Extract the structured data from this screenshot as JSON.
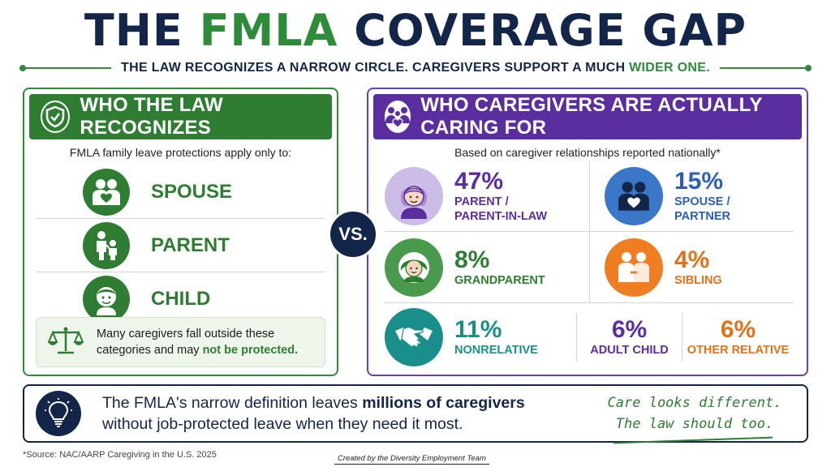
{
  "title": {
    "part1": "THE ",
    "highlight": "FMLA",
    "part2": " COVERAGE GAP"
  },
  "subtitle": {
    "main": "THE LAW RECOGNIZES A NARROW CIRCLE. CAREGIVERS SUPPORT A MUCH ",
    "highlight": "WIDER ONE."
  },
  "left": {
    "header": "WHO THE LAW RECOGNIZES",
    "header_icon": "shield-check-icon",
    "intro": "FMLA family leave protections apply only to:",
    "items": [
      {
        "label": "SPOUSE",
        "icon": "couple-heart-icon"
      },
      {
        "label": "PARENT",
        "icon": "parent-child-icon"
      },
      {
        "label": "CHILD",
        "icon": "child-icon"
      }
    ],
    "note": {
      "text": "Many caregivers fall outside these categories and may ",
      "bold": "not be protected.",
      "icon": "scales-icon"
    }
  },
  "vs": "VS.",
  "right": {
    "header": "WHO CAREGIVERS ARE ACTUALLY CARING FOR",
    "header_icon": "family-heart-icon",
    "intro": "Based on caregiver relationships reported nationally*",
    "stats": [
      {
        "pct": "47%",
        "line1": "PARENT /",
        "line2": "PARENT-IN-LAW",
        "icon": "elder-woman-icon",
        "color": "#5b2ea0"
      },
      {
        "pct": "15%",
        "line1": "SPOUSE /",
        "line2": "PARTNER",
        "icon": "couple-heart-icon",
        "color": "#2d5fb8"
      },
      {
        "pct": "8%",
        "line1": "GRANDPARENT",
        "icon": "grandparent-icon",
        "color": "#2e7d32"
      },
      {
        "pct": "4%",
        "line1": "SIBLING",
        "icon": "siblings-icon",
        "color": "#e0721c"
      },
      {
        "pct": "11%",
        "line1": "NONRELATIVE",
        "icon": "handshake-icon",
        "color": "#1a8e8a"
      },
      {
        "pct": "6%",
        "line1": "ADULT CHILD",
        "color": "#5b2ea0"
      },
      {
        "pct": "6%",
        "line1": "OTHER RELATIVE",
        "color": "#e0721c"
      }
    ]
  },
  "banner": {
    "text1": "The FMLA's narrow definition leaves ",
    "bold": "millions of caregivers",
    "text2": "without job-protected leave when they need it most.",
    "icon": "lightbulb-icon",
    "tagline1": "Care looks different.",
    "tagline2": "The law should too."
  },
  "source": "*Source: NAC/AARP Caregiving in the U.S. 2025",
  "credit": "Created by the Diversity Employment Team"
}
